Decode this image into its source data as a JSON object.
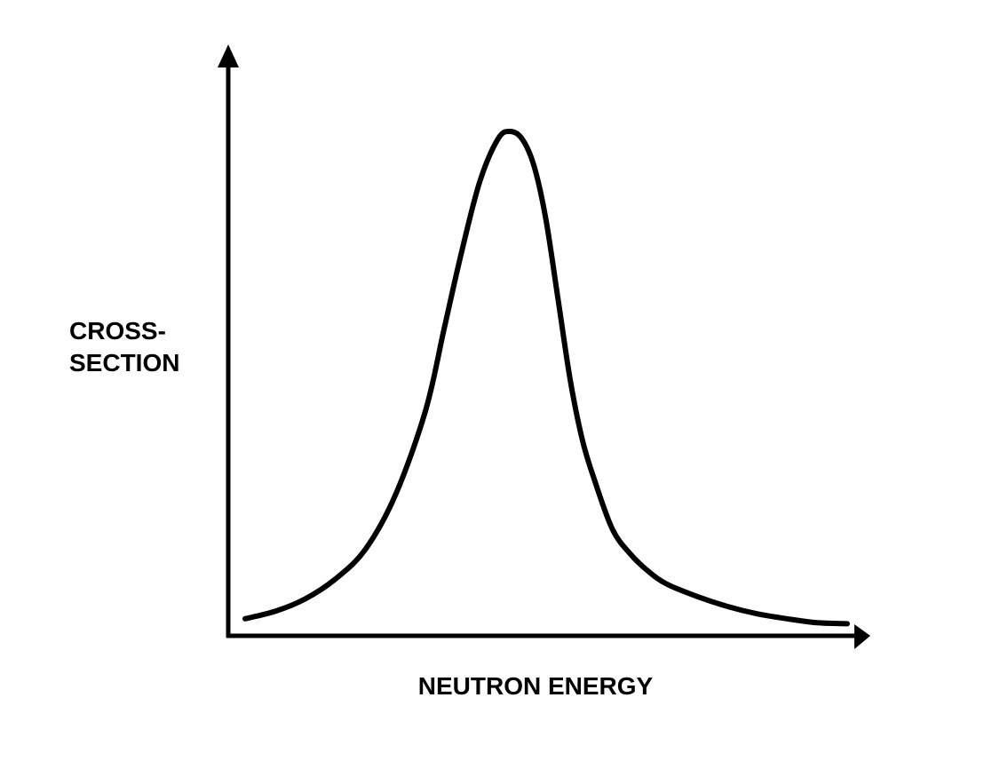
{
  "chart_data": {
    "type": "line",
    "title": "",
    "xlabel": "NEUTRON ENERGY",
    "ylabel": [
      "CROSS-",
      "SECTION"
    ],
    "ticks": false,
    "grid": false,
    "x": [
      0.0,
      0.05,
      0.1,
      0.15,
      0.2,
      0.25,
      0.3,
      0.33,
      0.36,
      0.39,
      0.42,
      0.44,
      0.46,
      0.48,
      0.5,
      0.52,
      0.54,
      0.56,
      0.58,
      0.61,
      0.64,
      0.67,
      0.7,
      0.75,
      0.8,
      0.85,
      0.9,
      0.95,
      1.0
    ],
    "y": [
      0.02,
      0.035,
      0.06,
      0.1,
      0.16,
      0.27,
      0.44,
      0.6,
      0.76,
      0.9,
      0.985,
      1.0,
      0.985,
      0.93,
      0.82,
      0.66,
      0.5,
      0.38,
      0.3,
      0.2,
      0.15,
      0.115,
      0.09,
      0.065,
      0.045,
      0.03,
      0.02,
      0.012,
      0.01
    ],
    "xlim": [
      0,
      1
    ],
    "ylim": [
      0,
      1.04
    ],
    "series_color": "#000000"
  }
}
